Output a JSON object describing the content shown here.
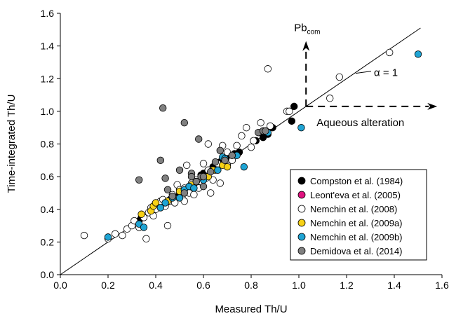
{
  "chart_data": {
    "type": "scatter",
    "xlabel": "Measured Th/U",
    "ylabel": "Time-integrated Th/U",
    "xlim": [
      0.0,
      1.6
    ],
    "ylim": [
      0.0,
      1.6
    ],
    "x_ticks": [
      "0.0",
      "0.2",
      "0.4",
      "0.6",
      "0.8",
      "1.0",
      "1.2",
      "1.4",
      "1.6"
    ],
    "y_ticks": [
      "0.0",
      "0.2",
      "0.4",
      "0.6",
      "0.8",
      "1.0",
      "1.2",
      "1.4",
      "1.6"
    ],
    "grid": false,
    "reference_line": {
      "label": "α = 1",
      "slope": 1,
      "intercept": 0
    },
    "annotations": {
      "pb_label": "Pb",
      "pb_sub": "com",
      "alteration_label": "Aqueous alteration",
      "arrow_origin": [
        1.03,
        1.03
      ],
      "pb_arrow_end": [
        1.03,
        1.43
      ],
      "alteration_arrow_end": [
        1.58,
        1.03
      ]
    },
    "legend_position": "bottom-right",
    "series": [
      {
        "name": "Compston et al. (1984)",
        "color": "#000000",
        "points": [
          [
            0.33,
            0.33
          ],
          [
            0.34,
            0.35
          ],
          [
            0.44,
            0.43
          ],
          [
            0.46,
            0.46
          ],
          [
            0.5,
            0.49
          ],
          [
            0.53,
            0.52
          ],
          [
            0.56,
            0.55
          ],
          [
            0.58,
            0.58
          ],
          [
            0.59,
            0.61
          ],
          [
            0.6,
            0.62
          ],
          [
            0.62,
            0.64
          ],
          [
            0.64,
            0.66
          ],
          [
            0.67,
            0.69
          ],
          [
            0.7,
            0.72
          ],
          [
            0.73,
            0.74
          ],
          [
            0.75,
            0.75
          ],
          [
            0.82,
            0.82
          ],
          [
            0.85,
            0.84
          ],
          [
            0.87,
            0.86
          ],
          [
            0.89,
            0.9
          ],
          [
            0.97,
            0.94
          ],
          [
            0.98,
            1.03
          ]
        ]
      },
      {
        "name": "Leont'eva et al. (2005)",
        "color": "#e0117f",
        "points": [
          [
            0.38,
            0.39
          ]
        ]
      },
      {
        "name": "Nemchin et al. (2008)",
        "color": "#ffffff",
        "points": [
          [
            0.1,
            0.24
          ],
          [
            0.2,
            0.22
          ],
          [
            0.23,
            0.25
          ],
          [
            0.26,
            0.24
          ],
          [
            0.28,
            0.28
          ],
          [
            0.3,
            0.3
          ],
          [
            0.31,
            0.33
          ],
          [
            0.33,
            0.29
          ],
          [
            0.35,
            0.35
          ],
          [
            0.36,
            0.22
          ],
          [
            0.37,
            0.38
          ],
          [
            0.38,
            0.41
          ],
          [
            0.39,
            0.36
          ],
          [
            0.4,
            0.4
          ],
          [
            0.41,
            0.43
          ],
          [
            0.42,
            0.45
          ],
          [
            0.43,
            0.46
          ],
          [
            0.44,
            0.42
          ],
          [
            0.45,
            0.3
          ],
          [
            0.46,
            0.45
          ],
          [
            0.47,
            0.49
          ],
          [
            0.48,
            0.44
          ],
          [
            0.49,
            0.55
          ],
          [
            0.5,
            0.52
          ],
          [
            0.51,
            0.47
          ],
          [
            0.52,
            0.53
          ],
          [
            0.52,
            0.45
          ],
          [
            0.53,
            0.67
          ],
          [
            0.54,
            0.5
          ],
          [
            0.55,
            0.56
          ],
          [
            0.56,
            0.49
          ],
          [
            0.57,
            0.58
          ],
          [
            0.58,
            0.53
          ],
          [
            0.59,
            0.57
          ],
          [
            0.6,
            0.68
          ],
          [
            0.61,
            0.59
          ],
          [
            0.62,
            0.64
          ],
          [
            0.62,
            0.8
          ],
          [
            0.63,
            0.5
          ],
          [
            0.64,
            0.58
          ],
          [
            0.65,
            0.64
          ],
          [
            0.66,
            0.68
          ],
          [
            0.67,
            0.56
          ],
          [
            0.68,
            0.79
          ],
          [
            0.7,
            0.67
          ],
          [
            0.7,
            0.75
          ],
          [
            0.72,
            0.7
          ],
          [
            0.74,
            0.79
          ],
          [
            0.76,
            0.85
          ],
          [
            0.78,
            0.9
          ],
          [
            0.8,
            0.78
          ],
          [
            0.81,
            0.82
          ],
          [
            0.84,
            0.93
          ],
          [
            0.87,
            1.26
          ],
          [
            0.88,
            0.91
          ],
          [
            0.95,
            1.0
          ],
          [
            0.96,
            1.0
          ],
          [
            1.13,
            1.08
          ],
          [
            1.17,
            1.21
          ],
          [
            1.38,
            1.36
          ]
        ]
      },
      {
        "name": "Nemchin et al. (2009a)",
        "color": "#f7d117",
        "points": [
          [
            0.34,
            0.37
          ],
          [
            0.38,
            0.39
          ],
          [
            0.39,
            0.42
          ],
          [
            0.4,
            0.44
          ],
          [
            0.45,
            0.45
          ],
          [
            0.5,
            0.51
          ],
          [
            0.55,
            0.55
          ],
          [
            0.57,
            0.57
          ],
          [
            0.6,
            0.6
          ],
          [
            0.62,
            0.6
          ],
          [
            0.64,
            0.64
          ],
          [
            0.68,
            0.67
          ],
          [
            0.7,
            0.66
          ]
        ]
      },
      {
        "name": "Nemchin et al. (2009b)",
        "color": "#1fa4d4",
        "points": [
          [
            0.2,
            0.23
          ],
          [
            0.33,
            0.31
          ],
          [
            0.35,
            0.29
          ],
          [
            0.42,
            0.41
          ],
          [
            0.44,
            0.44
          ],
          [
            0.47,
            0.47
          ],
          [
            0.5,
            0.47
          ],
          [
            0.52,
            0.52
          ],
          [
            0.54,
            0.54
          ],
          [
            0.56,
            0.53
          ],
          [
            0.6,
            0.58
          ],
          [
            0.66,
            0.64
          ],
          [
            0.68,
            0.72
          ],
          [
            0.69,
            0.71
          ],
          [
            0.74,
            0.73
          ],
          [
            0.77,
            0.66
          ],
          [
            0.87,
            0.87
          ],
          [
            1.01,
            0.9
          ],
          [
            1.5,
            1.35
          ]
        ]
      },
      {
        "name": "Demidova et al. (2014)",
        "color": "#808080",
        "points": [
          [
            0.33,
            0.58
          ],
          [
            0.42,
            0.7
          ],
          [
            0.43,
            1.02
          ],
          [
            0.44,
            0.59
          ],
          [
            0.45,
            0.52
          ],
          [
            0.47,
            0.48
          ],
          [
            0.5,
            0.64
          ],
          [
            0.52,
            0.5
          ],
          [
            0.52,
            0.93
          ],
          [
            0.55,
            0.62
          ],
          [
            0.55,
            0.6
          ],
          [
            0.57,
            0.57
          ],
          [
            0.58,
            0.83
          ],
          [
            0.59,
            0.6
          ],
          [
            0.6,
            0.54
          ],
          [
            0.6,
            0.6
          ],
          [
            0.63,
            0.63
          ],
          [
            0.65,
            0.69
          ],
          [
            0.67,
            0.76
          ],
          [
            0.69,
            0.7
          ],
          [
            0.72,
            0.73
          ],
          [
            0.83,
            0.87
          ],
          [
            0.85,
            0.88
          ],
          [
            0.86,
            0.88
          ]
        ]
      }
    ]
  }
}
